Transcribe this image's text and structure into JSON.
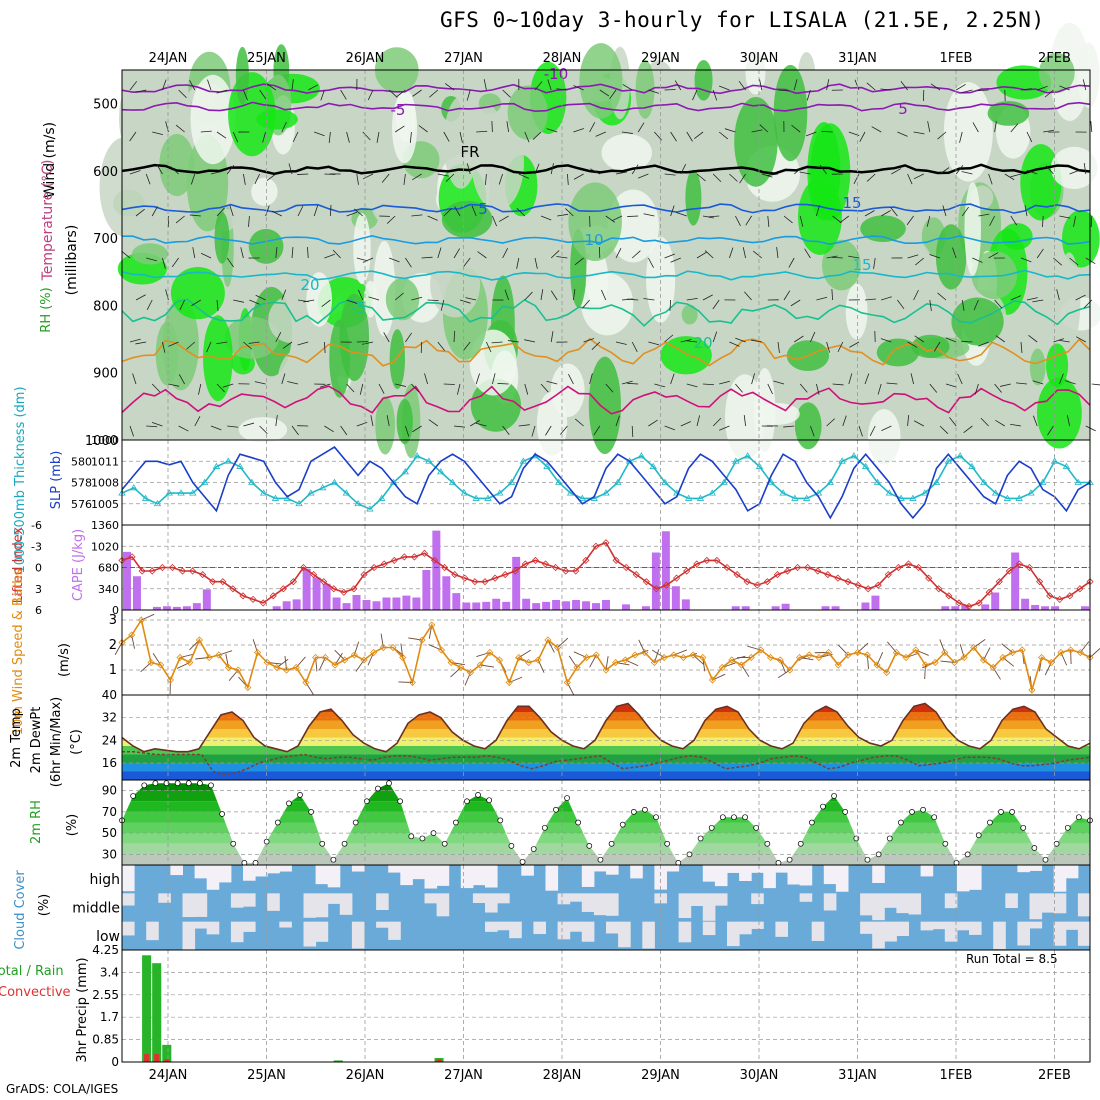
{
  "title": "GFS 0~10day 3-hourly for LISALA (21.5E, 2.25N)",
  "footer": "GrADS: COLA/IGES",
  "run_total_label": "Run Total = 8.5",
  "date_labels": [
    "24JAN",
    "25JAN",
    "26JAN",
    "27JAN",
    "28JAN",
    "29JAN",
    "30JAN",
    "31JAN",
    "1FEB",
    "2FEB"
  ],
  "panel_labels": {
    "upper": [
      "RH (%)",
      "Temperature (°C)",
      "Wind (m/s)",
      "(millibars)"
    ],
    "slp": [
      "1000-500mb Thickness (dm)",
      "SLP (mb)"
    ],
    "cape": [
      "Lifted Index",
      "CAPE (J/kg)"
    ],
    "wind10": [
      "10m Wind Speed & Barbs",
      "(m/s)"
    ],
    "temp2m": [
      "2m Temp",
      "2m DewPt",
      "(6hr Min/Max)",
      "(°C)"
    ],
    "rh2m": [
      "2m RH",
      "(%)"
    ],
    "cloud": [
      "Cloud Cover",
      "(%)"
    ],
    "precip": [
      "Total / Rain",
      "Convective",
      "3hr Precip (mm)"
    ]
  },
  "colors": {
    "rh_fill": [
      "#f0f7ee",
      "#c8d6c6",
      "#7ecb79",
      "#3fbf3f",
      "#15e615"
    ],
    "slp_line": "#1a3ec8",
    "thickness_line": "#22b8c8",
    "lifted_index": "#d03030",
    "cape_bar": "#c070ee",
    "wind10": "#e08a10",
    "cloud_fill": "#6aaad8",
    "precip_total": "#28b428",
    "precip_conv": "#e03030"
  },
  "chart_data": [
    {
      "type": "heatmap",
      "title": "Upper-air cross section: RH (%), Temperature (°C), Wind (m/s)",
      "ylabel": "millibars",
      "ylim": [
        1000,
        450
      ],
      "y_ticks": [
        500,
        600,
        700,
        800,
        900,
        1000
      ],
      "x_ticks": [
        "24JAN",
        "25JAN",
        "26JAN",
        "27JAN",
        "28JAN",
        "29JAN",
        "30JAN",
        "31JAN",
        "1FEB",
        "2FEB"
      ],
      "isotherm_labels": [
        "-10",
        "-5",
        "FR",
        "5",
        "10",
        "15",
        "20",
        "-5",
        "5",
        "15",
        "20"
      ],
      "isotherms_degC": [
        -10,
        -5,
        0,
        5,
        10,
        15,
        20,
        25,
        30
      ],
      "isotherm_levels_mb": [
        478,
        505,
        598,
        656,
        703,
        755,
        810,
        870,
        940
      ]
    },
    {
      "type": "line",
      "title": "SLP (mb) and 1000-500mb Thickness (dm)",
      "ylabel": "SLP (mb)",
      "ylim": [
        1002,
        1014
      ],
      "y_ticks": [
        1005,
        1008,
        1011
      ],
      "y_tick_labels": [
        "1005",
        "1008",
        "1011"
      ],
      "y2label": "1000-500mb Thickness (dm)",
      "y2lim": [
        574,
        582
      ],
      "y2_ticks": [
        576,
        578,
        580
      ],
      "y2_tick_labels": [
        "576",
        "578",
        "580"
      ],
      "series": [
        {
          "name": "SLP",
          "values": [
            1007,
            1009,
            1011,
            1011,
            1010.5,
            1011,
            1008,
            1006,
            1004,
            1009,
            1012,
            1011.5,
            1011,
            1008,
            1006,
            1007,
            1011,
            1012,
            1013,
            1011,
            1009,
            1011,
            1010,
            1008,
            1006,
            1005,
            1009,
            1011,
            1012,
            1011,
            1009,
            1007,
            1005,
            1006,
            1010,
            1012,
            1011,
            1009,
            1007,
            1005,
            1006,
            1010,
            1012,
            1011,
            1009,
            1007,
            1005,
            1006,
            1010,
            1012,
            1011,
            1009,
            1007,
            1004,
            1005,
            1009,
            1012,
            1011,
            1008,
            1006,
            1003,
            1006,
            1010,
            1012,
            1010,
            1008,
            1005,
            1003,
            1005,
            1010,
            1012,
            1010,
            1008,
            1006,
            1005,
            1009,
            1011,
            1010,
            1007,
            1006,
            1004,
            1007,
            1008
          ]
        },
        {
          "name": "Thickness",
          "values": [
            577,
            577.5,
            576.5,
            576,
            577,
            577,
            577,
            578,
            579.5,
            580,
            579.5,
            578,
            577,
            576.5,
            576.5,
            576,
            577,
            577.5,
            578,
            577,
            576,
            575.5,
            576.5,
            578,
            579,
            580.5,
            580,
            579,
            578,
            577,
            576.5,
            576.5,
            577,
            578,
            580,
            580.5,
            579.5,
            578,
            577,
            576.5,
            576.5,
            577,
            578,
            580,
            580.5,
            579.5,
            578,
            577,
            576.5,
            576.5,
            577,
            578,
            580,
            580.5,
            579.5,
            578,
            577,
            576.5,
            576.5,
            577,
            578,
            580,
            580.5,
            579.5,
            578,
            577,
            576.5,
            576.5,
            577,
            578,
            580,
            580.5,
            579.5,
            578,
            577,
            576.5,
            576.5,
            577,
            578,
            580,
            579.5,
            578,
            578
          ]
        }
      ]
    },
    {
      "type": "bar",
      "title": "Lifted Index and CAPE (J/kg)",
      "ylabel": "CAPE (J/kg)",
      "ylim": [
        0,
        1360
      ],
      "y_ticks": [
        0,
        340,
        680,
        1020,
        1360
      ],
      "y_tick_labels": [
        "0",
        "340",
        "680",
        "1020",
        "1360"
      ],
      "y2label": "Lifted Index",
      "y2lim": [
        6,
        -6
      ],
      "y2_ticks": [
        6,
        3,
        0,
        -3,
        -6
      ],
      "y2_tick_labels": [
        "6",
        "3",
        "0",
        "-3",
        "-6"
      ],
      "series": [
        {
          "name": "CAPE",
          "values": [
            930,
            540,
            0,
            50,
            60,
            50,
            60,
            110,
            330,
            0,
            0,
            0,
            0,
            0,
            0,
            60,
            140,
            170,
            660,
            520,
            420,
            200,
            110,
            240,
            160,
            140,
            200,
            200,
            230,
            200,
            640,
            1270,
            540,
            270,
            120,
            120,
            130,
            180,
            130,
            850,
            180,
            110,
            130,
            160,
            140,
            160,
            140,
            110,
            160,
            0,
            90,
            0,
            60,
            920,
            1260,
            380,
            170,
            0,
            0,
            0,
            0,
            60,
            60,
            0,
            0,
            60,
            100,
            0,
            0,
            0,
            60,
            60,
            0,
            0,
            120,
            230,
            0,
            0,
            0,
            0,
            0,
            0,
            60,
            60,
            80,
            0,
            90,
            280,
            0,
            920,
            180,
            80,
            60,
            60,
            0,
            0,
            60
          ]
        },
        {
          "name": "Lifted Index",
          "values": [
            -1,
            -1.5,
            0.5,
            0.5,
            0,
            0,
            0.5,
            0.5,
            1,
            2,
            2,
            3,
            4,
            4.5,
            5,
            4,
            3,
            2,
            0,
            1,
            2,
            3,
            3.5,
            3,
            1,
            0,
            -0.5,
            -1,
            -1.5,
            -1.5,
            -2,
            -1,
            0,
            1,
            1.5,
            2,
            2,
            1.5,
            1,
            0.5,
            -0.5,
            -1,
            -0.5,
            0,
            0.5,
            0.5,
            -1,
            -3,
            -3.5,
            -1,
            0,
            1,
            2,
            3,
            2.5,
            1.5,
            0.5,
            -0.5,
            -1,
            -1,
            0,
            1,
            2,
            2.5,
            2,
            1,
            0.5,
            0,
            0,
            0.5,
            1,
            1.5,
            2,
            2.5,
            3,
            2.5,
            1,
            0,
            -0.5,
            0,
            1.5,
            3,
            4,
            5,
            5.5,
            5,
            3.5,
            2,
            0.5,
            -0.5,
            0,
            2,
            4,
            4.5,
            4,
            3,
            2
          ]
        }
      ]
    },
    {
      "type": "line",
      "title": "10m Wind Speed & Barbs",
      "ylabel": "(m/s)",
      "ylim": [
        0,
        3.4
      ],
      "y_ticks": [
        1,
        2,
        3
      ],
      "y_tick_labels": [
        "1",
        "2",
        "3"
      ],
      "series": [
        {
          "name": "10m Wind Speed",
          "values": [
            2.1,
            2.4,
            3,
            1.3,
            1.2,
            0.6,
            1.5,
            1.3,
            2.2,
            1.5,
            1.6,
            1.1,
            1,
            0.3,
            1.7,
            1.3,
            1.1,
            1,
            1.1,
            0.5,
            1.5,
            1.5,
            1.2,
            1.4,
            1.6,
            1.4,
            1.7,
            1.9,
            1.9,
            1.5,
            0.5,
            2.2,
            2.8,
            1.8,
            1.3,
            1.1,
            0.9,
            1.2,
            1.7,
            1.4,
            0.5,
            1.5,
            1.3,
            1.4,
            2.2,
            1.9,
            0.5,
            1.1,
            1.5,
            1.6,
            1,
            1.3,
            1.4,
            1.6,
            1.7,
            1.3,
            1.5,
            1.6,
            1.5,
            1.6,
            1.5,
            0.6,
            1.1,
            1.4,
            1.2,
            1.5,
            1.8,
            1.5,
            1.4,
            1,
            1.5,
            1.6,
            1.5,
            1.7,
            1.2,
            1.6,
            1.7,
            1.6,
            1.2,
            0.9,
            1.7,
            1.5,
            1.8,
            1.2,
            1.3,
            1.7,
            1.3,
            1.5,
            1.9,
            1.4,
            1.1,
            1.5,
            1.7,
            1.8,
            0.2,
            1.5,
            1.3,
            1.7,
            1.8,
            1.7,
            1.5
          ]
        }
      ]
    },
    {
      "type": "area",
      "title": "2m Temp, 2m DewPt (6hr Min/Max)",
      "ylabel": "(°C)",
      "ylim": [
        10,
        40
      ],
      "y_ticks": [
        16,
        24,
        32,
        40
      ],
      "y_tick_labels": [
        "16",
        "24",
        "32",
        "40"
      ],
      "series": [
        {
          "name": "2m Temp",
          "values": [
            25,
            22,
            20,
            21,
            20.5,
            20,
            20,
            21,
            27,
            33,
            34,
            31,
            25,
            22,
            21,
            20,
            22,
            29,
            34,
            35,
            31,
            26,
            23,
            21,
            20,
            23,
            30,
            33,
            34,
            32,
            27,
            24,
            22,
            21,
            24,
            31,
            36,
            36,
            32,
            27,
            24,
            22,
            21,
            24,
            31,
            36,
            37,
            33,
            28,
            24,
            22,
            21,
            24,
            31,
            35,
            36,
            34,
            28,
            24,
            22,
            21,
            23,
            30,
            34,
            36,
            34,
            29,
            25,
            23,
            22,
            24,
            31,
            36,
            37,
            34,
            28,
            24,
            22,
            21,
            24,
            31,
            35,
            36,
            34,
            28,
            25,
            22,
            21,
            23
          ]
        },
        {
          "name": "2m DewPt",
          "values": [
            20,
            20,
            19.5,
            19,
            19,
            19,
            19,
            19,
            13,
            12,
            12.5,
            14,
            16,
            17,
            18,
            18.5,
            19,
            18,
            17.5,
            18,
            18,
            17.5,
            17,
            18,
            18.5,
            18.5,
            18,
            17,
            17.5,
            18,
            18,
            18,
            18.5,
            18,
            17,
            15,
            14,
            15,
            16.5,
            17,
            17.5,
            18,
            18.5,
            16,
            14,
            14.5,
            15,
            16,
            17,
            18,
            18.5,
            18,
            16,
            14,
            14.5,
            15,
            16,
            17.5,
            18,
            18.5,
            18,
            16,
            14,
            14.5,
            16,
            17,
            18,
            18.5,
            18.5,
            17,
            15,
            15.5,
            16,
            17,
            18,
            18,
            18,
            17.5,
            16,
            15,
            15,
            15.5,
            16,
            17,
            17.5,
            18
          ]
        }
      ]
    },
    {
      "type": "area",
      "title": "2m RH",
      "ylabel": "(%)",
      "ylim": [
        20,
        100
      ],
      "y_ticks": [
        30,
        50,
        70,
        90
      ],
      "y_tick_labels": [
        "30",
        "50",
        "70",
        "90"
      ],
      "series": [
        {
          "name": "2m RH",
          "values": [
            62,
            85,
            95,
            97,
            97,
            97,
            97,
            97,
            95,
            68,
            40,
            22,
            22,
            42,
            60,
            78,
            86,
            70,
            40,
            25,
            40,
            60,
            80,
            92,
            97,
            80,
            47,
            45,
            50,
            40,
            60,
            80,
            86,
            81,
            62,
            38,
            23,
            35,
            55,
            72,
            83,
            60,
            38,
            25,
            40,
            58,
            70,
            72,
            65,
            40,
            22,
            30,
            45,
            55,
            65,
            65,
            65,
            55,
            40,
            22,
            25,
            40,
            60,
            75,
            85,
            70,
            45,
            25,
            30,
            45,
            60,
            70,
            72,
            65,
            40,
            22,
            30,
            48,
            60,
            70,
            70,
            55,
            36,
            25,
            40,
            55,
            65,
            62
          ]
        }
      ]
    },
    {
      "type": "heatmap",
      "title": "Cloud Cover (%)",
      "ylabel": "(%)",
      "y_categories": [
        "high",
        "middle",
        "low"
      ],
      "ylim": [
        0,
        100
      ]
    },
    {
      "type": "bar",
      "title": "3hr Precip (mm)",
      "ylabel": "3hr Precip (mm)",
      "ylim": [
        0,
        4.25
      ],
      "y_ticks": [
        0,
        0.85,
        1.7,
        2.55,
        3.4,
        4.25
      ],
      "y_tick_labels": [
        "0",
        "0.85",
        "1.7",
        "2.55",
        "3.4",
        "4.25"
      ],
      "x_ticks": [
        "24JAN",
        "25JAN",
        "26JAN",
        "27JAN",
        "28JAN",
        "29JAN",
        "30JAN",
        "31JAN",
        "1FEB",
        "2FEB"
      ],
      "series": [
        {
          "name": "Total / Rain",
          "values": [
            4.05,
            3.75,
            0.65,
            0,
            0,
            0,
            0,
            0,
            0,
            0,
            0,
            0,
            0,
            0,
            0,
            0,
            0,
            0,
            0,
            0,
            0.06,
            0,
            0,
            0,
            0,
            0,
            0,
            0,
            0,
            0,
            0,
            0.15
          ]
        },
        {
          "name": "Convective",
          "values": [
            0.3,
            0.3,
            0.1,
            0,
            0,
            0,
            0,
            0,
            0,
            0,
            0,
            0,
            0,
            0,
            0,
            0,
            0,
            0,
            0,
            0,
            0,
            0,
            0,
            0,
            0,
            0,
            0,
            0,
            0,
            0,
            0,
            0.1
          ]
        }
      ]
    }
  ]
}
